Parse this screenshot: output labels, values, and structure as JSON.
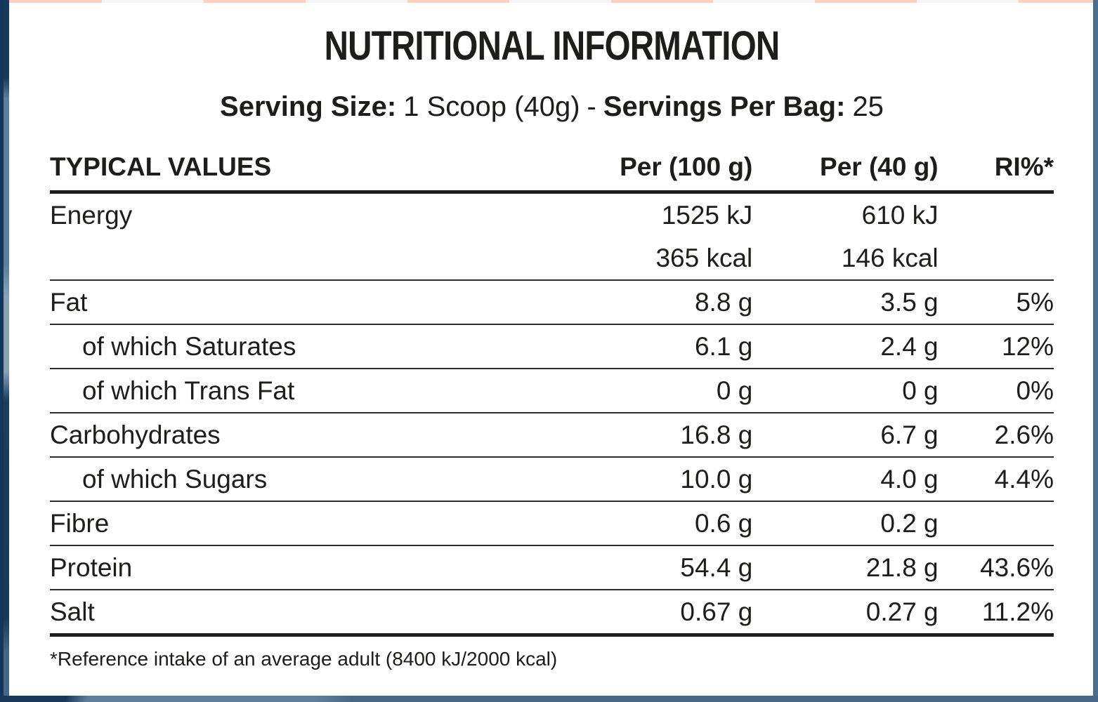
{
  "title": "NUTRITIONAL INFORMATION",
  "serving": {
    "size_label": "Serving Size:",
    "size_value": "1 Scoop (40g)",
    "dash": "-",
    "bag_label": "Servings Per Bag:",
    "bag_value": "25"
  },
  "table": {
    "headers": [
      "TYPICAL VALUES",
      "Per (100 g)",
      "Per (40 g)",
      "RI%*"
    ],
    "rows": [
      {
        "name": "Energy",
        "per100": "1525 kJ",
        "per40": "610 kJ",
        "ri": ""
      },
      {
        "name": "",
        "per100": "365 kcal",
        "per40": "146 kcal",
        "ri": ""
      },
      {
        "name": "Fat",
        "per100": "8.8 g",
        "per40": "3.5 g",
        "ri": "5%"
      },
      {
        "name": "of which Saturates",
        "per100": "6.1 g",
        "per40": "2.4 g",
        "ri": "12%"
      },
      {
        "name": "of which Trans Fat",
        "per100": "0 g",
        "per40": "0 g",
        "ri": "0%"
      },
      {
        "name": "Carbohydrates",
        "per100": "16.8 g",
        "per40": "6.7 g",
        "ri": "2.6%"
      },
      {
        "name": "of which Sugars",
        "per100": "10.0 g",
        "per40": "4.0 g",
        "ri": "4.4%"
      },
      {
        "name": "Fibre",
        "per100": "0.6 g",
        "per40": "0.2 g",
        "ri": ""
      },
      {
        "name": "Protein",
        "per100": "54.4 g",
        "per40": "21.8 g",
        "ri": "43.6%"
      },
      {
        "name": "Salt",
        "per100": "0.67 g",
        "per40": "0.27 g",
        "ri": "11.2%"
      }
    ]
  },
  "footnote": "*Reference intake of an average adult (8400 kJ/2000 kcal)",
  "colors": {
    "text": "#1d1d1b",
    "rule": "#1d1d1b",
    "frame_navy": "#16395c",
    "frame_slate": "#4a6e8e",
    "frame_slate_light": "#8aa0b2",
    "top_strip_salmon": "#f8d0c4",
    "top_strip_gray": "#f4f4f4"
  }
}
